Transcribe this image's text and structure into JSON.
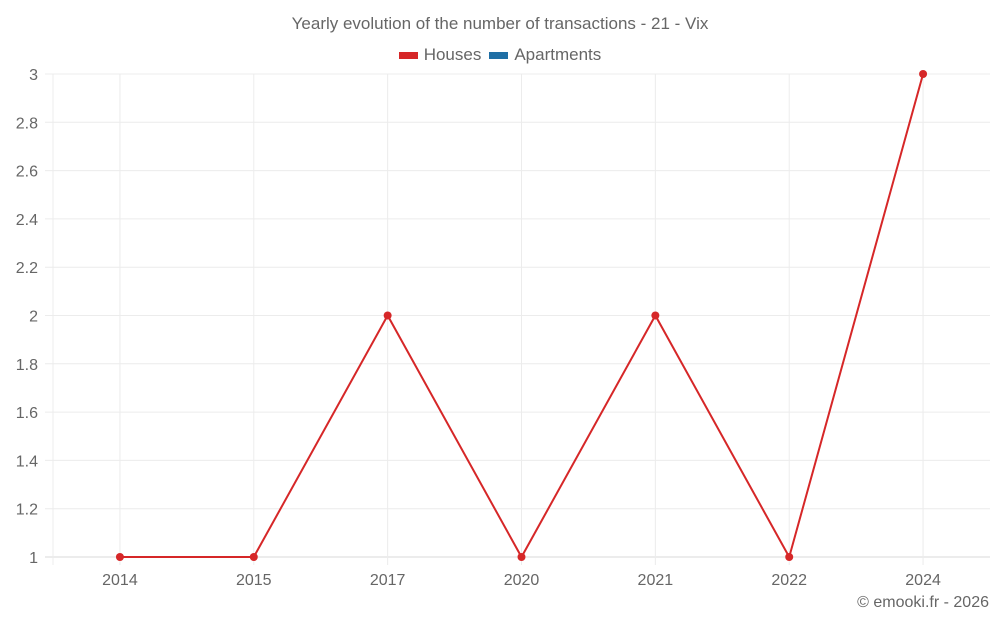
{
  "title": "Yearly evolution of the number of transactions - 21 - Vix",
  "legend": [
    {
      "label": "Houses",
      "color": "#d62728"
    },
    {
      "label": "Apartments",
      "color": "#1f6fa5"
    }
  ],
  "credit": "© emooki.fr - 2026",
  "chart_data": {
    "type": "line",
    "title": "Yearly evolution of the number of transactions - 21 - Vix",
    "categories": [
      "2014",
      "2015",
      "2017",
      "2020",
      "2021",
      "2022",
      "2024"
    ],
    "series": [
      {
        "name": "Houses",
        "color": "#d62728",
        "values": [
          1,
          1,
          2,
          1,
          2,
          1,
          3
        ]
      },
      {
        "name": "Apartments",
        "color": "#1f6fa5",
        "values": []
      }
    ],
    "xlabel": "",
    "ylabel": "",
    "ylim": [
      1,
      3
    ],
    "yticks": [
      "1",
      "1.2",
      "1.4",
      "1.6",
      "1.8",
      "2",
      "2.2",
      "2.4",
      "2.6",
      "2.8",
      "3"
    ],
    "grid": true,
    "legend_position": "top"
  }
}
